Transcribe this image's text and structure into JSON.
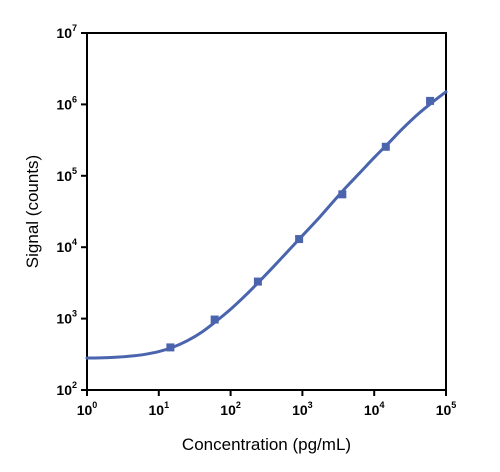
{
  "chart_data": {
    "type": "scatter",
    "title": "",
    "xlabel": "Concentration (pg/mL)",
    "ylabel": "Signal (counts)",
    "x_scale": "log",
    "y_scale": "log",
    "xlim": [
      1,
      100000
    ],
    "ylim": [
      100,
      10000000
    ],
    "x_ticks": [
      {
        "base": "10",
        "exp": "0",
        "value": 1
      },
      {
        "base": "10",
        "exp": "1",
        "value": 10
      },
      {
        "base": "10",
        "exp": "2",
        "value": 100
      },
      {
        "base": "10",
        "exp": "3",
        "value": 1000
      },
      {
        "base": "10",
        "exp": "4",
        "value": 10000
      },
      {
        "base": "10",
        "exp": "5",
        "value": 100000
      }
    ],
    "y_ticks": [
      {
        "base": "10",
        "exp": "2",
        "value": 100
      },
      {
        "base": "10",
        "exp": "3",
        "value": 1000
      },
      {
        "base": "10",
        "exp": "4",
        "value": 10000
      },
      {
        "base": "10",
        "exp": "5",
        "value": 100000
      },
      {
        "base": "10",
        "exp": "6",
        "value": 1000000
      },
      {
        "base": "10",
        "exp": "7",
        "value": 10000000
      }
    ],
    "grid": false,
    "legend": "none",
    "series": [
      {
        "marker": "square",
        "color": "#4a64ad",
        "points": [
          {
            "x": 14.5,
            "y": 395
          },
          {
            "x": 60,
            "y": 970
          },
          {
            "x": 240,
            "y": 3300
          },
          {
            "x": 900,
            "y": 13000
          },
          {
            "x": 3600,
            "y": 55000
          },
          {
            "x": 14500,
            "y": 255000
          },
          {
            "x": 60000,
            "y": 1120000
          }
        ]
      }
    ],
    "fit_curve": {
      "color": "#4a64ad",
      "points": [
        {
          "x": 1,
          "y": 280
        },
        {
          "x": 1.5,
          "y": 282
        },
        {
          "x": 2.5,
          "y": 288
        },
        {
          "x": 4,
          "y": 298
        },
        {
          "x": 6.3,
          "y": 315
        },
        {
          "x": 10,
          "y": 345
        },
        {
          "x": 16,
          "y": 400
        },
        {
          "x": 25,
          "y": 490
        },
        {
          "x": 40,
          "y": 650
        },
        {
          "x": 63,
          "y": 920
        },
        {
          "x": 100,
          "y": 1350
        },
        {
          "x": 160,
          "y": 2100
        },
        {
          "x": 250,
          "y": 3300
        },
        {
          "x": 400,
          "y": 5400
        },
        {
          "x": 630,
          "y": 8800
        },
        {
          "x": 1000,
          "y": 14500
        },
        {
          "x": 1600,
          "y": 24000
        },
        {
          "x": 2500,
          "y": 40000
        },
        {
          "x": 4000,
          "y": 68000
        },
        {
          "x": 6300,
          "y": 110000
        },
        {
          "x": 10000,
          "y": 180000
        },
        {
          "x": 16000,
          "y": 290000
        },
        {
          "x": 25000,
          "y": 460000
        },
        {
          "x": 40000,
          "y": 720000
        },
        {
          "x": 63000,
          "y": 1050000
        },
        {
          "x": 100000,
          "y": 1500000
        }
      ]
    }
  }
}
